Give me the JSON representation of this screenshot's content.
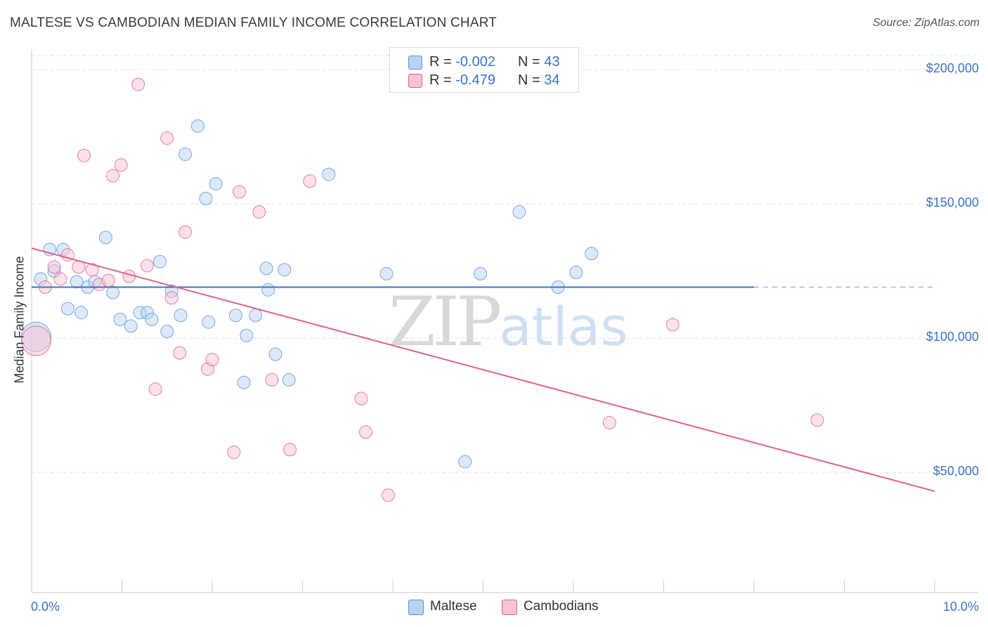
{
  "title": "MALTESE VS CAMBODIAN MEDIAN FAMILY INCOME CORRELATION CHART",
  "source": "Source: ZipAtlas.com",
  "watermark": {
    "zip": "ZIP",
    "atlas": "atlas"
  },
  "legend_top": [
    {
      "r_label": "R = ",
      "r_value": "-0.002",
      "n_label": "N = ",
      "n_value": "43",
      "color": "#a9c8f0"
    },
    {
      "r_label": "R = ",
      "r_value": "-0.479",
      "n_label": "N = ",
      "n_value": "34",
      "color": "#f6b8cb"
    }
  ],
  "bottom_legend": [
    {
      "label": "Maltese",
      "color": "#a9c8f0"
    },
    {
      "label": "Cambodians",
      "color": "#f6b8cb"
    }
  ],
  "chart_data": {
    "type": "scatter",
    "title": "MALTESE VS CAMBODIAN MEDIAN FAMILY INCOME CORRELATION CHART",
    "xlabel": "",
    "ylabel": "Median Family Income",
    "x_tick_labels": [
      "0.0%",
      "10.0%"
    ],
    "y_tick_labels": [
      "$50,000",
      "$100,000",
      "$150,000",
      "$200,000"
    ],
    "y_ticks": [
      50000,
      100000,
      150000,
      200000
    ],
    "xlim": [
      0,
      10
    ],
    "ylim": [
      5000,
      215000
    ],
    "grid": true,
    "series": [
      {
        "name": "Maltese",
        "color": "#5b93d8",
        "fill": "#b9d3f2",
        "trend": {
          "x": [
            0,
            8
          ],
          "y": [
            119000,
            119000
          ],
          "dashed_extension_to": 10
        },
        "points": [
          [
            0.05,
            100500,
            "big"
          ],
          [
            0.1,
            122000
          ],
          [
            0.2,
            133000
          ],
          [
            0.25,
            125000
          ],
          [
            0.35,
            133000
          ],
          [
            0.4,
            111000
          ],
          [
            0.5,
            121000
          ],
          [
            0.55,
            109500
          ],
          [
            0.62,
            119000
          ],
          [
            0.7,
            121000
          ],
          [
            0.82,
            137500
          ],
          [
            0.9,
            117000
          ],
          [
            0.98,
            107000
          ],
          [
            1.1,
            104500
          ],
          [
            1.2,
            109500
          ],
          [
            1.28,
            109500
          ],
          [
            1.33,
            107000
          ],
          [
            1.42,
            128500
          ],
          [
            1.5,
            102500
          ],
          [
            1.55,
            117500
          ],
          [
            1.65,
            108500
          ],
          [
            1.7,
            168500
          ],
          [
            1.84,
            179000
          ],
          [
            1.93,
            152000
          ],
          [
            1.96,
            106000
          ],
          [
            2.04,
            157500
          ],
          [
            2.26,
            108500
          ],
          [
            2.35,
            83500
          ],
          [
            2.38,
            101000
          ],
          [
            2.48,
            108500
          ],
          [
            2.6,
            126000
          ],
          [
            2.62,
            118000
          ],
          [
            2.7,
            94000
          ],
          [
            2.8,
            125500
          ],
          [
            2.85,
            84500
          ],
          [
            3.29,
            161000
          ],
          [
            3.93,
            124000
          ],
          [
            4.8,
            54000
          ],
          [
            4.97,
            124000
          ],
          [
            5.4,
            147000
          ],
          [
            5.83,
            119000
          ],
          [
            6.03,
            124500
          ],
          [
            6.2,
            131500
          ]
        ]
      },
      {
        "name": "Cambodians",
        "color": "#e0628e",
        "fill": "#f8c3d4",
        "trend": {
          "x": [
            0,
            10
          ],
          "y": [
            133500,
            43000
          ]
        },
        "points": [
          [
            0.05,
            99000,
            "big"
          ],
          [
            0.15,
            119000
          ],
          [
            0.25,
            126500
          ],
          [
            0.32,
            122000
          ],
          [
            0.4,
            131000
          ],
          [
            0.52,
            126500
          ],
          [
            0.58,
            168000
          ],
          [
            0.67,
            125500
          ],
          [
            0.75,
            120000
          ],
          [
            0.85,
            121500
          ],
          [
            0.9,
            160500
          ],
          [
            0.99,
            164500
          ],
          [
            1.08,
            123000
          ],
          [
            1.18,
            194500
          ],
          [
            1.28,
            127000
          ],
          [
            1.37,
            81000
          ],
          [
            1.5,
            174500
          ],
          [
            1.55,
            115000
          ],
          [
            1.64,
            94500
          ],
          [
            1.7,
            139500
          ],
          [
            1.95,
            88500
          ],
          [
            2.0,
            92000
          ],
          [
            2.24,
            57500
          ],
          [
            2.3,
            154500
          ],
          [
            2.52,
            147000
          ],
          [
            2.66,
            84500
          ],
          [
            2.86,
            58500
          ],
          [
            3.08,
            158500
          ],
          [
            3.65,
            77500
          ],
          [
            3.7,
            65000
          ],
          [
            3.95,
            41500
          ],
          [
            6.4,
            68500
          ],
          [
            7.1,
            105000
          ],
          [
            8.7,
            69500
          ]
        ]
      }
    ]
  }
}
